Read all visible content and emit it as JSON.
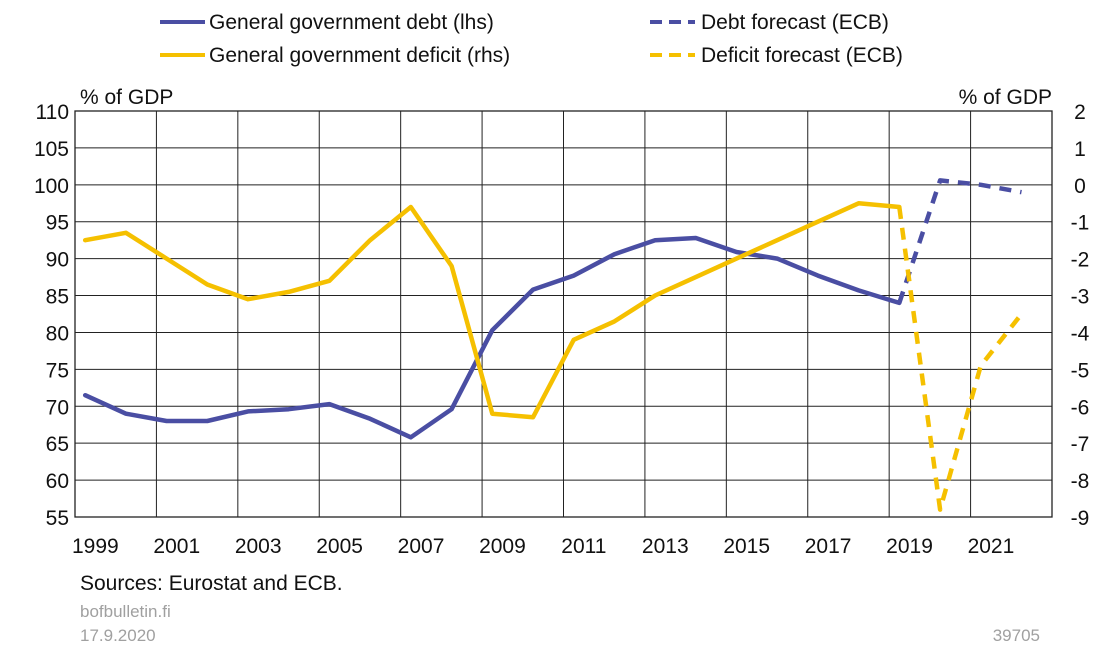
{
  "chart_data": {
    "type": "line",
    "legend": [
      {
        "label": "General government debt (lhs)",
        "color": "#4a4ea3",
        "style": "solid"
      },
      {
        "label": "Debt forecast (ECB)",
        "color": "#4a4ea3",
        "style": "dashed"
      },
      {
        "label": "General government deficit (rhs)",
        "color": "#f5c000",
        "style": "solid"
      },
      {
        "label": "Deficit forecast (ECB)",
        "color": "#f5c000",
        "style": "dashed"
      }
    ],
    "left_axis": {
      "unit": "% of GDP",
      "min": 55,
      "max": 110,
      "step": 5,
      "ticks": [
        "110",
        "105",
        "100",
        "95",
        "90",
        "85",
        "80",
        "75",
        "70",
        "65",
        "60",
        "55"
      ]
    },
    "right_axis": {
      "unit": "% of GDP",
      "min": -9,
      "max": 2,
      "step": 1,
      "ticks": [
        "2",
        "1",
        "0",
        "-1",
        "-2",
        "-3",
        "-4",
        "-5",
        "-6",
        "-7",
        "-8",
        "-9"
      ]
    },
    "x_axis": {
      "min": 1998.5,
      "max": 2022.5,
      "ticks": [
        "1999",
        "2001",
        "2003",
        "2005",
        "2007",
        "2009",
        "2011",
        "2013",
        "2015",
        "2017",
        "2019",
        "2021"
      ]
    },
    "grid": true,
    "series": [
      {
        "name": "General government debt (lhs)",
        "axis": "left",
        "color": "#4a4ea3",
        "style": "solid",
        "x": [
          1998.75,
          1999.75,
          2000.75,
          2001.75,
          2002.75,
          2003.75,
          2004.75,
          2005.75,
          2006.75,
          2007.75,
          2008.75,
          2009.75,
          2010.75,
          2011.75,
          2012.75,
          2013.75,
          2014.75,
          2015.75,
          2016.75,
          2017.75,
          2018.75
        ],
        "y": [
          71.5,
          69.0,
          68.0,
          68.0,
          69.3,
          69.6,
          70.3,
          68.3,
          65.8,
          69.6,
          80.3,
          85.8,
          87.7,
          90.6,
          92.5,
          92.8,
          90.9,
          90.0,
          87.7,
          85.7,
          84.0
        ]
      },
      {
        "name": "Debt forecast (ECB)",
        "axis": "left",
        "color": "#4a4ea3",
        "style": "dashed",
        "x": [
          2018.75,
          2019.75,
          2020.75,
          2021.75
        ],
        "y": [
          84.0,
          100.6,
          100.0,
          99.0
        ]
      },
      {
        "name": "General government deficit (rhs)",
        "axis": "right",
        "color": "#f5c000",
        "style": "solid",
        "x": [
          1998.75,
          1999.75,
          2000.75,
          2001.75,
          2002.75,
          2003.75,
          2004.75,
          2005.75,
          2006.75,
          2007.75,
          2008.75,
          2009.75,
          2010.75,
          2011.75,
          2012.75,
          2013.75,
          2014.75,
          2015.75,
          2016.75,
          2017.75,
          2018.75
        ],
        "y": [
          -1.5,
          -1.3,
          -2.0,
          -2.7,
          -3.1,
          -2.9,
          -2.6,
          -1.5,
          -0.6,
          -2.2,
          -6.2,
          -6.3,
          -4.2,
          -3.7,
          -3.0,
          -2.5,
          -2.0,
          -1.5,
          -1.0,
          -0.5,
          -0.6
        ]
      },
      {
        "name": "Deficit forecast (ECB)",
        "axis": "right",
        "color": "#f5c000",
        "style": "dashed",
        "x": [
          2018.75,
          2019.75,
          2020.75,
          2021.75
        ],
        "y": [
          -0.6,
          -8.8,
          -4.9,
          -3.5
        ]
      }
    ]
  },
  "footer": {
    "sources": "Sources: Eurostat and ECB.",
    "site": "bofbulletin.fi",
    "date": "17.9.2020",
    "chart_id": "39705"
  }
}
